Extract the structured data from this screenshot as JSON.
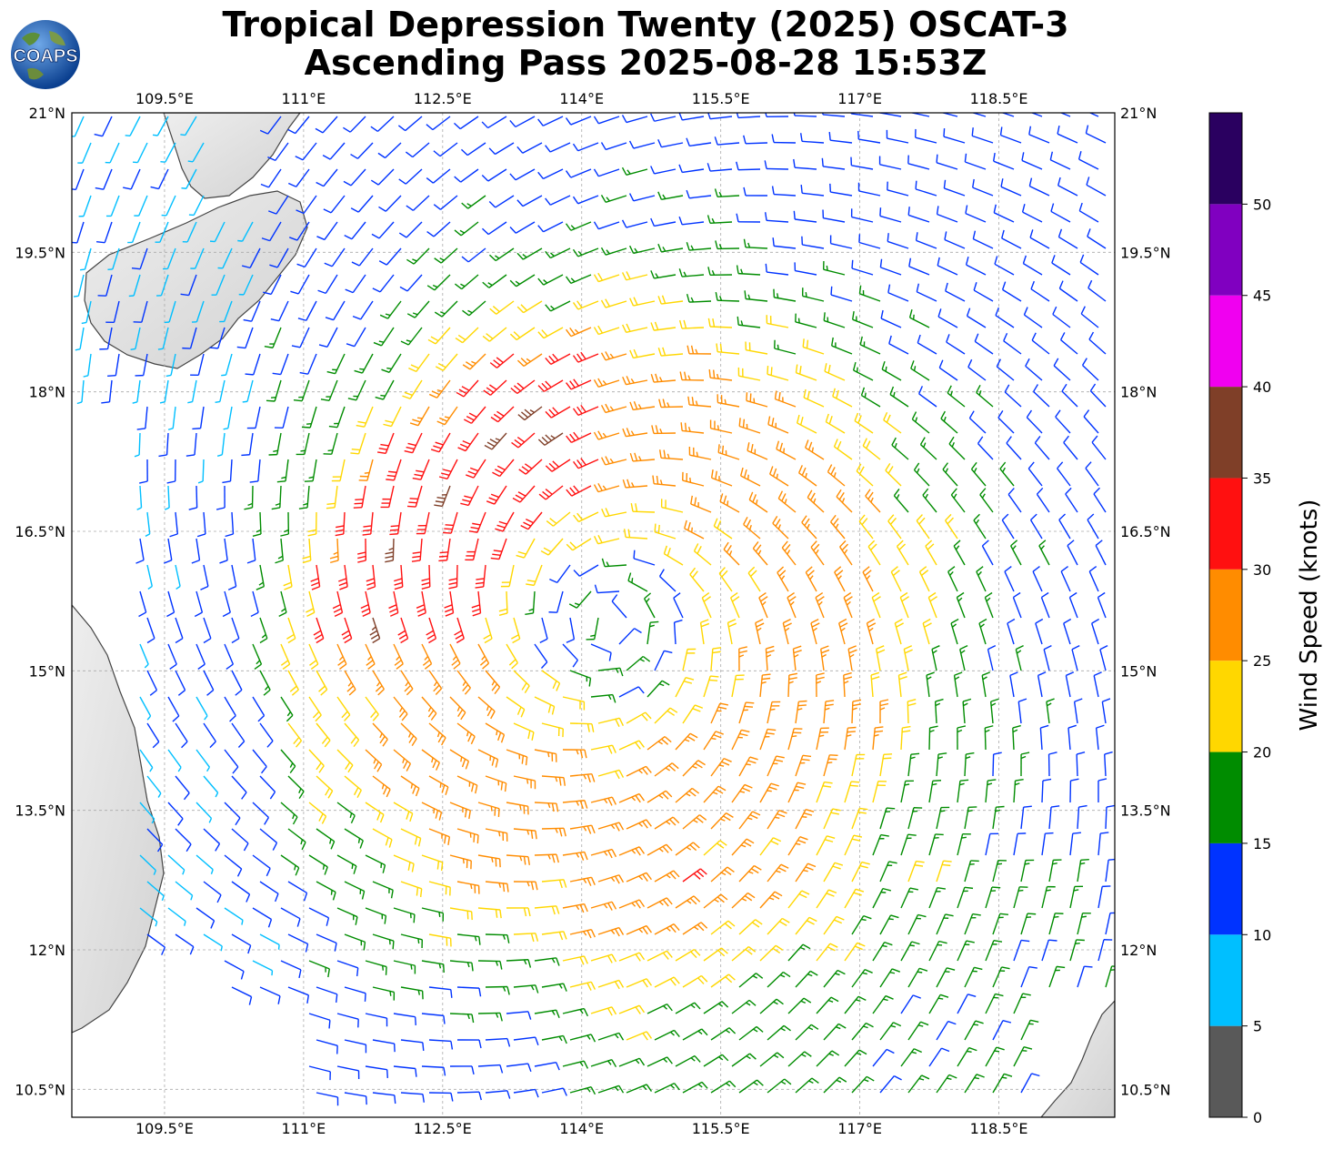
{
  "title": {
    "line1": "Tropical Depression Twenty (2025) OSCAT-3",
    "line2": "Ascending Pass 2025-08-28 15:53Z"
  },
  "logo": {
    "text": "COAPS",
    "icon": "globe-logo"
  },
  "map": {
    "lon_range": [
      108.5,
      119.75
    ],
    "lat_range": [
      10.2,
      21.0
    ],
    "lon_ticks": [
      "109.5°E",
      "111°E",
      "112.5°E",
      "114°E",
      "115.5°E",
      "117°E",
      "118.5°E"
    ],
    "lon_tick_values": [
      109.5,
      111,
      112.5,
      114,
      115.5,
      117,
      118.5
    ],
    "lat_ticks": [
      "21°N",
      "19.5°N",
      "18°N",
      "16.5°N",
      "15°N",
      "13.5°N",
      "12°N",
      "10.5°N"
    ],
    "lat_tick_values": [
      21,
      19.5,
      18,
      16.5,
      15,
      13.5,
      12,
      10.5
    ],
    "grid": true,
    "storm_center_approx": {
      "lon": 114.3,
      "lat": 15.5
    },
    "land_color": "#e6e6e6",
    "coast_color": "#444444"
  },
  "colorbar": {
    "label": "Wind Speed (knots)",
    "ticks": [
      "0",
      "5",
      "10",
      "15",
      "20",
      "25",
      "30",
      "35",
      "40",
      "45",
      "50"
    ],
    "bins": [
      {
        "min": 0,
        "max": 5,
        "color": "#595959"
      },
      {
        "min": 5,
        "max": 10,
        "color": "#00bfff"
      },
      {
        "min": 10,
        "max": 15,
        "color": "#0033ff"
      },
      {
        "min": 15,
        "max": 20,
        "color": "#008c00"
      },
      {
        "min": 20,
        "max": 25,
        "color": "#ffd700"
      },
      {
        "min": 25,
        "max": 30,
        "color": "#ff8c00"
      },
      {
        "min": 30,
        "max": 35,
        "color": "#ff1010"
      },
      {
        "min": 35,
        "max": 40,
        "color": "#7f3f28"
      },
      {
        "min": 40,
        "max": 45,
        "color": "#f000f0"
      },
      {
        "min": 45,
        "max": 50,
        "color": "#8000c0"
      },
      {
        "min": 50,
        "max": 55,
        "color": "#2a0060"
      }
    ]
  }
}
